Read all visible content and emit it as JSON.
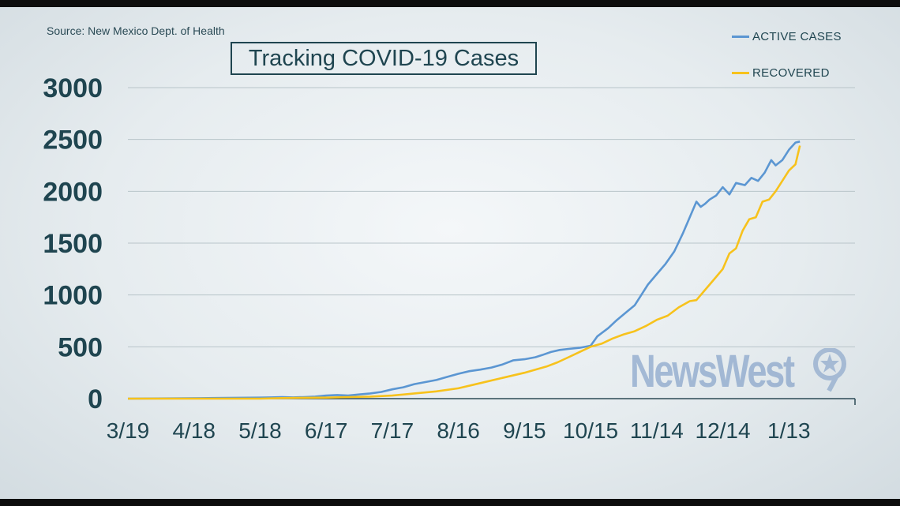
{
  "source": "Source: New Mexico Dept. of Health",
  "title": "Tracking COVID-19 Cases",
  "logo_text": "NewsWest",
  "colors": {
    "active": "#5b96d2",
    "recovered": "#f7c21c",
    "text": "#1f4550",
    "grid": "#b8c4c9"
  },
  "chart_data": {
    "type": "line",
    "title": "Tracking COVID-19 Cases",
    "xlabel": "",
    "ylabel": "",
    "ylim": [
      0,
      3000
    ],
    "yticks": [
      0,
      500,
      1000,
      1500,
      2000,
      2500,
      3000
    ],
    "x_tick_labels": [
      "3/19",
      "4/18",
      "5/18",
      "6/17",
      "7/17",
      "8/16",
      "9/15",
      "10/15",
      "11/14",
      "12/14",
      "1/13"
    ],
    "x_tick_days": [
      0,
      30,
      60,
      90,
      120,
      150,
      180,
      210,
      240,
      270,
      300
    ],
    "xlim_days": [
      0,
      330
    ],
    "grid": true,
    "legend": "top-right",
    "series": [
      {
        "name": "ACTIVE CASES",
        "color": "#5b96d2",
        "points": [
          [
            0,
            0
          ],
          [
            20,
            2
          ],
          [
            40,
            6
          ],
          [
            60,
            10
          ],
          [
            65,
            12
          ],
          [
            70,
            15
          ],
          [
            75,
            12
          ],
          [
            80,
            15
          ],
          [
            85,
            20
          ],
          [
            90,
            30
          ],
          [
            95,
            35
          ],
          [
            100,
            30
          ],
          [
            105,
            40
          ],
          [
            110,
            50
          ],
          [
            115,
            65
          ],
          [
            120,
            90
          ],
          [
            125,
            110
          ],
          [
            130,
            140
          ],
          [
            135,
            160
          ],
          [
            140,
            180
          ],
          [
            145,
            210
          ],
          [
            150,
            240
          ],
          [
            155,
            265
          ],
          [
            160,
            280
          ],
          [
            165,
            300
          ],
          [
            170,
            330
          ],
          [
            175,
            370
          ],
          [
            180,
            380
          ],
          [
            185,
            400
          ],
          [
            188,
            420
          ],
          [
            192,
            450
          ],
          [
            196,
            470
          ],
          [
            200,
            480
          ],
          [
            205,
            490
          ],
          [
            210,
            510
          ],
          [
            213,
            600
          ],
          [
            218,
            680
          ],
          [
            222,
            760
          ],
          [
            226,
            830
          ],
          [
            230,
            900
          ],
          [
            233,
            1000
          ],
          [
            236,
            1100
          ],
          [
            240,
            1200
          ],
          [
            244,
            1300
          ],
          [
            248,
            1420
          ],
          [
            252,
            1600
          ],
          [
            255,
            1750
          ],
          [
            258,
            1900
          ],
          [
            260,
            1850
          ],
          [
            262,
            1880
          ],
          [
            264,
            1920
          ],
          [
            267,
            1960
          ],
          [
            270,
            2040
          ],
          [
            273,
            1970
          ],
          [
            276,
            2080
          ],
          [
            280,
            2060
          ],
          [
            283,
            2130
          ],
          [
            286,
            2100
          ],
          [
            289,
            2180
          ],
          [
            292,
            2300
          ],
          [
            294,
            2250
          ],
          [
            297,
            2300
          ],
          [
            300,
            2400
          ],
          [
            303,
            2470
          ],
          [
            305,
            2480
          ]
        ]
      },
      {
        "name": "RECOVERED",
        "color": "#f7c21c",
        "points": [
          [
            0,
            0
          ],
          [
            60,
            0
          ],
          [
            70,
            5
          ],
          [
            80,
            8
          ],
          [
            90,
            10
          ],
          [
            100,
            15
          ],
          [
            110,
            20
          ],
          [
            120,
            30
          ],
          [
            130,
            50
          ],
          [
            140,
            70
          ],
          [
            150,
            100
          ],
          [
            160,
            150
          ],
          [
            170,
            200
          ],
          [
            180,
            250
          ],
          [
            185,
            280
          ],
          [
            190,
            310
          ],
          [
            195,
            350
          ],
          [
            200,
            400
          ],
          [
            205,
            450
          ],
          [
            210,
            500
          ],
          [
            215,
            530
          ],
          [
            220,
            580
          ],
          [
            225,
            620
          ],
          [
            230,
            650
          ],
          [
            235,
            700
          ],
          [
            240,
            760
          ],
          [
            245,
            800
          ],
          [
            250,
            880
          ],
          [
            255,
            940
          ],
          [
            258,
            950
          ],
          [
            262,
            1050
          ],
          [
            266,
            1150
          ],
          [
            270,
            1250
          ],
          [
            273,
            1400
          ],
          [
            276,
            1450
          ],
          [
            279,
            1620
          ],
          [
            282,
            1730
          ],
          [
            285,
            1750
          ],
          [
            288,
            1900
          ],
          [
            291,
            1920
          ],
          [
            294,
            2000
          ],
          [
            297,
            2100
          ],
          [
            300,
            2200
          ],
          [
            303,
            2260
          ],
          [
            305,
            2440
          ]
        ]
      }
    ]
  }
}
